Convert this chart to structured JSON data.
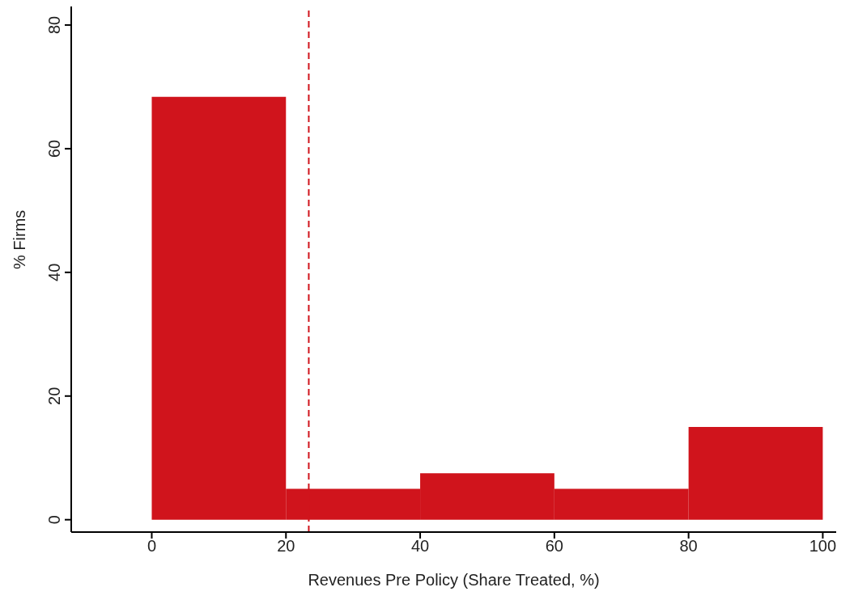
{
  "chart_data": {
    "type": "histogram",
    "xlabel": "Revenues Pre Policy (Share Treated, %)",
    "ylabel": "% Firms",
    "bins": [
      0,
      20,
      40,
      60,
      80,
      100
    ],
    "values": [
      68.4,
      5.0,
      7.5,
      5.0,
      15.0
    ],
    "color": "#d0141c",
    "xlim": [
      -12,
      102
    ],
    "ylim": [
      -2,
      83
    ],
    "xticks": [
      0,
      20,
      40,
      60,
      80,
      100
    ],
    "yticks": [
      0,
      20,
      40,
      60,
      80
    ],
    "ref_lines": [
      {
        "axis": "x",
        "value": 23.4,
        "color": "#d0141c",
        "line_style": "dashed"
      }
    ]
  }
}
